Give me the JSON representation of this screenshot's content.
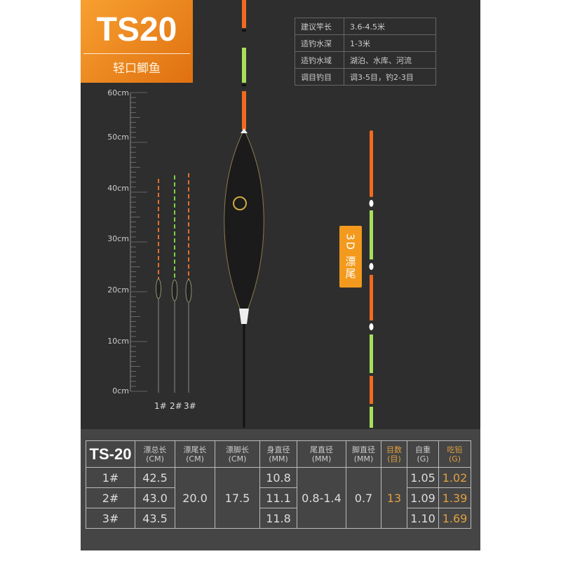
{
  "brand": {
    "model": "TS20",
    "subtitle": "轻口鲫鱼"
  },
  "specs": [
    {
      "label": "建议竿长",
      "value": "3.6-4.5米"
    },
    {
      "label": "适钓水深",
      "value": "1-3米"
    },
    {
      "label": "适钓水域",
      "value": "湖泊、水库、河流"
    },
    {
      "label": "调目钓目",
      "value": "调3-5目，钓2-3目"
    }
  ],
  "ruler": {
    "labels": [
      "60cm",
      "50cm",
      "40cm",
      "30cm",
      "20cm",
      "10cm",
      "0cm"
    ]
  },
  "float_labels": [
    "1#",
    "2#",
    "3#"
  ],
  "tail_label": "3D 漂尾",
  "colors": {
    "accent": "#f08a1e",
    "highlight": "#e0a040",
    "tail_orange": "#f26a20",
    "tail_green": "#a8e05a"
  },
  "table": {
    "model": "TS-20",
    "headers": [
      {
        "name": "漂总长",
        "unit": "(CM)"
      },
      {
        "name": "漂尾长",
        "unit": "(CM)"
      },
      {
        "name": "漂脚长",
        "unit": "(CM)"
      },
      {
        "name": "身直径",
        "unit": "(MM)"
      },
      {
        "name": "尾直径",
        "unit": "(MM)"
      },
      {
        "name": "脚直径",
        "unit": "(MM)"
      },
      {
        "name": "目数",
        "unit": "(目)"
      },
      {
        "name": "自重",
        "unit": "(G)"
      },
      {
        "name": "吃铅",
        "unit": "(G)"
      }
    ],
    "rows": [
      {
        "id": "1#",
        "total": "42.5",
        "body_d": "10.8",
        "weight": "1.05",
        "lead": "1.02"
      },
      {
        "id": "2#",
        "total": "43.0",
        "body_d": "11.1",
        "weight": "1.09",
        "lead": "1.39"
      },
      {
        "id": "3#",
        "total": "43.5",
        "body_d": "11.8",
        "weight": "1.10",
        "lead": "1.69"
      }
    ],
    "shared": {
      "tail_len": "20.0",
      "foot_len": "17.5",
      "tail_d": "0.8-1.4",
      "foot_d": "0.7",
      "marks": "13"
    }
  }
}
